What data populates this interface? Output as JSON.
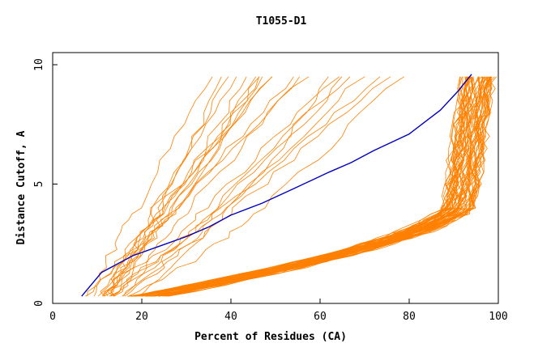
{
  "chart_data": {
    "type": "line",
    "title": "T1055-D1",
    "xlabel": "Percent of Residues (CA)",
    "ylabel": "Distance Cutoff, A",
    "xlim": [
      0,
      100
    ],
    "ylim": [
      0,
      10
    ],
    "x_ticks": [
      "0",
      "20",
      "40",
      "60",
      "80",
      "100"
    ],
    "y_ticks": [
      "0",
      "5",
      "10"
    ],
    "colors": {
      "other_models": "#ff8000",
      "highlight": "#0000c0",
      "axes": "#000000"
    },
    "highlight_series": {
      "x": [
        6.5,
        11,
        14,
        18,
        24,
        30,
        35,
        40,
        47,
        54,
        62,
        67,
        72,
        80,
        87,
        91,
        94
      ],
      "y": [
        0.3,
        1.3,
        1.6,
        2.0,
        2.4,
        2.8,
        3.2,
        3.7,
        4.2,
        4.8,
        5.5,
        5.9,
        6.4,
        7.1,
        8.1,
        8.9,
        9.6
      ]
    },
    "other_series_count": 80
  }
}
